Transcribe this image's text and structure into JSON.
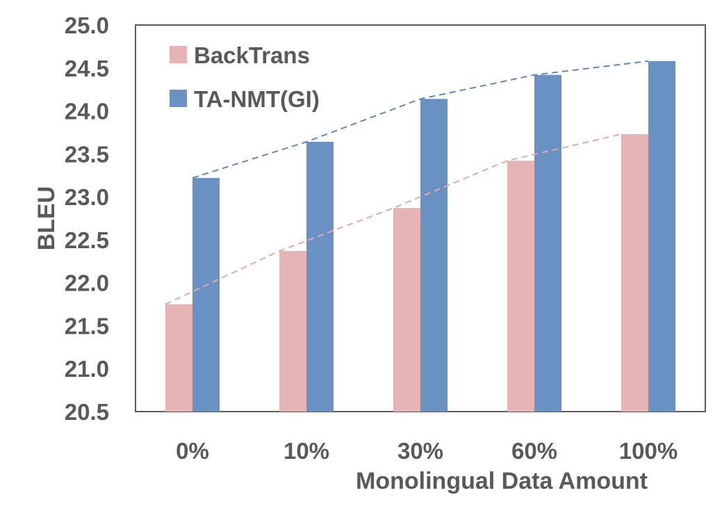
{
  "chart_data": {
    "type": "bar",
    "title": "",
    "xlabel": "Monolingual Data Amount",
    "ylabel": "BLEU",
    "ylim": [
      20.5,
      25.0
    ],
    "yticks": [
      "20.5",
      "21.0",
      "21.5",
      "22.0",
      "22.5",
      "23.0",
      "23.5",
      "24.0",
      "24.5",
      "25.0"
    ],
    "categories": [
      "0%",
      "10%",
      "30%",
      "60%",
      "100%"
    ],
    "series": [
      {
        "name": "BackTrans",
        "values": [
          21.75,
          22.37,
          22.87,
          23.42,
          23.73
        ],
        "color": "#e6b4b4",
        "trend_color": "#e6a8a8"
      },
      {
        "name": "TA-NMT(GI)",
        "values": [
          23.22,
          23.64,
          24.14,
          24.42,
          24.58
        ],
        "color": "#6a91c3",
        "trend_color": "#5e88bd"
      }
    ],
    "trend_lines": true,
    "trend_style": "dashed",
    "grid": false,
    "legend_position": "top-left"
  }
}
